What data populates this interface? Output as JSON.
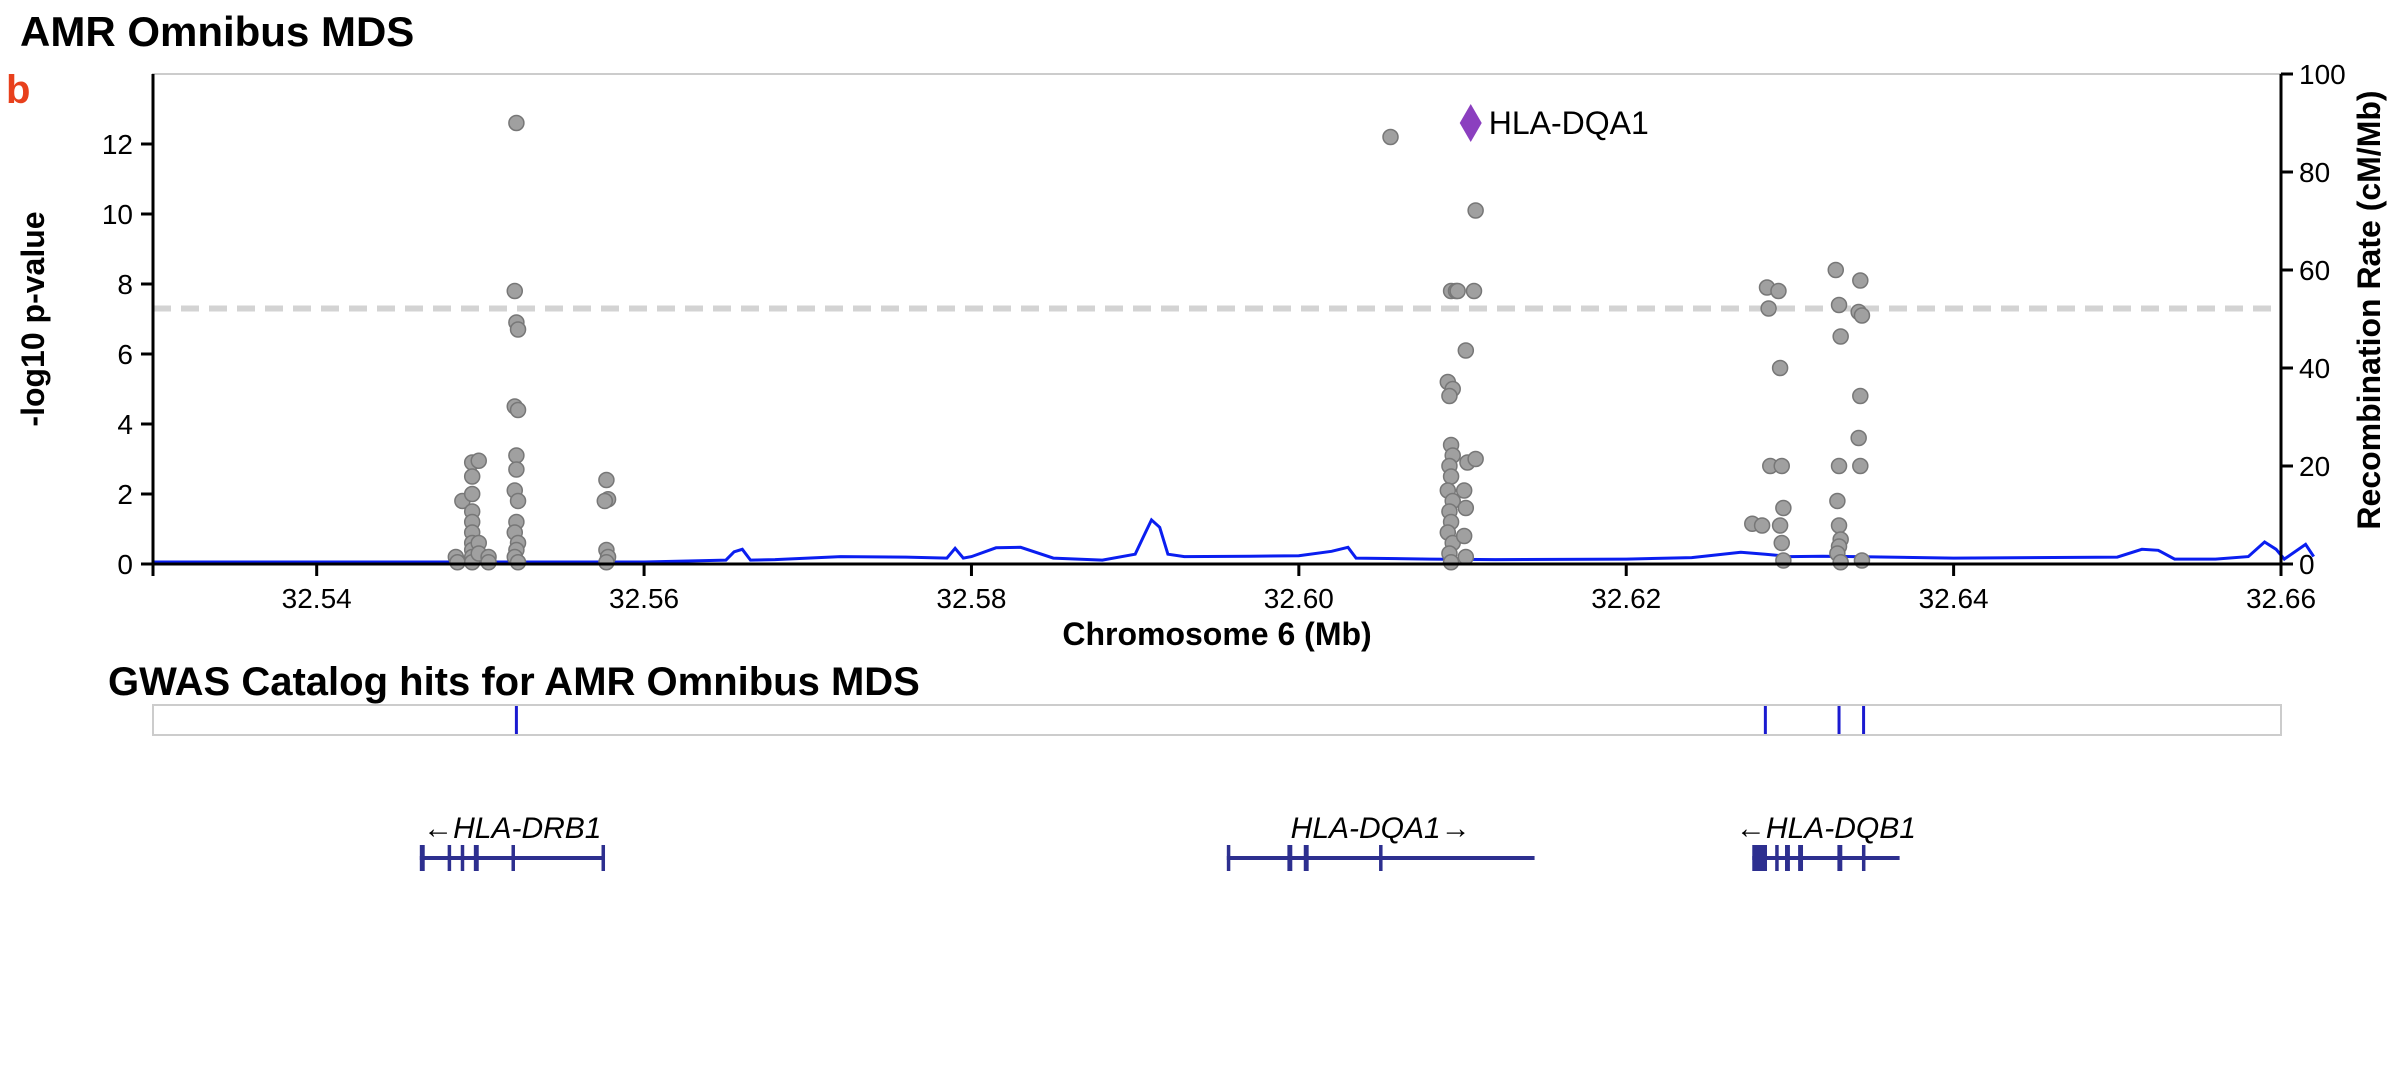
{
  "page": {
    "title": "AMR Omnibus MDS",
    "panel_letter": "b"
  },
  "chart_data": {
    "type": "scatter",
    "xlabel": "Chromosome 6 (Mb)",
    "ylabel": "-log10 p-value",
    "y2label": "Recombination Rate (cM/Mb)",
    "xlim": [
      32.53,
      32.66
    ],
    "ylim": [
      0,
      14
    ],
    "y2lim": [
      0,
      100
    ],
    "xticks": [
      32.54,
      32.56,
      32.58,
      32.6,
      32.62,
      32.64,
      32.66
    ],
    "xtick_labels": [
      "32.54",
      "32.56",
      "32.58",
      "32.60",
      "32.62",
      "32.64",
      "32.66"
    ],
    "yticks": [
      0,
      2,
      4,
      6,
      8,
      10,
      12
    ],
    "ytick_labels": [
      "0",
      "2",
      "4",
      "6",
      "8",
      "10",
      "12"
    ],
    "y2ticks": [
      0,
      20,
      40,
      60,
      80,
      100
    ],
    "y2tick_labels": [
      "0",
      "20",
      "40",
      "60",
      "80",
      "100"
    ],
    "significance_threshold": 7.3,
    "colors": {
      "points": "#a0a0a0",
      "point_stroke": "#777777",
      "lead": "#8b3fbf",
      "recomb": "#0a1ef0",
      "threshold": "#d3d3d3",
      "panel_letter": "#e8401c",
      "gene": "#2d2f8f",
      "gwas_hit": "#1a1ad0",
      "frame": "#cccccc"
    },
    "lead_variant": {
      "x": 32.6105,
      "y": 12.6,
      "label": "HLA-DQA1"
    },
    "points": [
      [
        32.5485,
        0.2
      ],
      [
        32.5486,
        0.05
      ],
      [
        32.5489,
        1.8
      ],
      [
        32.5495,
        2.9
      ],
      [
        32.5495,
        2.5
      ],
      [
        32.5495,
        2.0
      ],
      [
        32.5495,
        1.5
      ],
      [
        32.5495,
        1.2
      ],
      [
        32.5495,
        0.9
      ],
      [
        32.5495,
        0.6
      ],
      [
        32.5495,
        0.4
      ],
      [
        32.5495,
        0.2
      ],
      [
        32.5495,
        0.05
      ],
      [
        32.5499,
        2.95
      ],
      [
        32.5499,
        0.6
      ],
      [
        32.5499,
        0.3
      ],
      [
        32.5505,
        0.2
      ],
      [
        32.5505,
        0.05
      ],
      [
        32.5522,
        12.6
      ],
      [
        32.5521,
        7.8
      ],
      [
        32.5522,
        6.9
      ],
      [
        32.5523,
        6.7
      ],
      [
        32.5521,
        4.5
      ],
      [
        32.5523,
        4.4
      ],
      [
        32.5522,
        3.1
      ],
      [
        32.5522,
        2.7
      ],
      [
        32.5521,
        2.1
      ],
      [
        32.5523,
        1.8
      ],
      [
        32.5522,
        1.2
      ],
      [
        32.5521,
        0.9
      ],
      [
        32.5523,
        0.6
      ],
      [
        32.5522,
        0.4
      ],
      [
        32.5521,
        0.2
      ],
      [
        32.5523,
        0.05
      ],
      [
        32.5577,
        2.4
      ],
      [
        32.5578,
        1.85
      ],
      [
        32.5576,
        1.8
      ],
      [
        32.5577,
        0.4
      ],
      [
        32.5578,
        0.2
      ],
      [
        32.5577,
        0.05
      ],
      [
        32.6056,
        12.2
      ],
      [
        32.6093,
        7.8
      ],
      [
        32.6096,
        7.8
      ],
      [
        32.6097,
        7.8
      ],
      [
        32.6091,
        5.2
      ],
      [
        32.6094,
        5.0
      ],
      [
        32.6092,
        4.8
      ],
      [
        32.6093,
        3.4
      ],
      [
        32.6094,
        3.1
      ],
      [
        32.6092,
        2.8
      ],
      [
        32.6093,
        2.5
      ],
      [
        32.6091,
        2.1
      ],
      [
        32.6094,
        1.8
      ],
      [
        32.6092,
        1.5
      ],
      [
        32.6093,
        1.2
      ],
      [
        32.6091,
        0.9
      ],
      [
        32.6094,
        0.6
      ],
      [
        32.6092,
        0.3
      ],
      [
        32.6093,
        0.05
      ],
      [
        32.6102,
        6.1
      ],
      [
        32.6103,
        2.9
      ],
      [
        32.6101,
        2.1
      ],
      [
        32.6102,
        1.6
      ],
      [
        32.6101,
        0.8
      ],
      [
        32.6102,
        0.2
      ],
      [
        32.6108,
        10.1
      ],
      [
        32.6107,
        7.8
      ],
      [
        32.6108,
        3.0
      ],
      [
        32.6277,
        1.15
      ],
      [
        32.6283,
        1.1
      ],
      [
        32.6286,
        7.9
      ],
      [
        32.6287,
        7.3
      ],
      [
        32.6288,
        2.8
      ],
      [
        32.6293,
        7.8
      ],
      [
        32.6294,
        5.6
      ],
      [
        32.6295,
        2.8
      ],
      [
        32.6296,
        1.6
      ],
      [
        32.6294,
        1.1
      ],
      [
        32.6295,
        0.6
      ],
      [
        32.6296,
        0.1
      ],
      [
        32.6328,
        8.4
      ],
      [
        32.633,
        7.4
      ],
      [
        32.6331,
        6.5
      ],
      [
        32.633,
        2.8
      ],
      [
        32.6329,
        1.8
      ],
      [
        32.633,
        1.1
      ],
      [
        32.6331,
        0.7
      ],
      [
        32.633,
        0.5
      ],
      [
        32.6329,
        0.3
      ],
      [
        32.6331,
        0.05
      ],
      [
        32.6343,
        8.1
      ],
      [
        32.6342,
        7.2
      ],
      [
        32.6344,
        7.1
      ],
      [
        32.6343,
        4.8
      ],
      [
        32.6342,
        3.6
      ],
      [
        32.6343,
        2.8
      ],
      [
        32.6344,
        0.1
      ]
    ],
    "recombination": [
      [
        32.53,
        0.4
      ],
      [
        32.545,
        0.4
      ],
      [
        32.56,
        0.4
      ],
      [
        32.565,
        0.8
      ],
      [
        32.5655,
        2.5
      ],
      [
        32.566,
        3.0
      ],
      [
        32.5665,
        0.8
      ],
      [
        32.568,
        0.9
      ],
      [
        32.572,
        1.5
      ],
      [
        32.576,
        1.4
      ],
      [
        32.5785,
        1.2
      ],
      [
        32.579,
        3.2
      ],
      [
        32.5795,
        1.2
      ],
      [
        32.58,
        1.5
      ],
      [
        32.5815,
        3.3
      ],
      [
        32.583,
        3.4
      ],
      [
        32.585,
        1.2
      ],
      [
        32.588,
        0.8
      ],
      [
        32.59,
        2.0
      ],
      [
        32.5905,
        5.5
      ],
      [
        32.591,
        9.0
      ],
      [
        32.5915,
        7.5
      ],
      [
        32.592,
        2.0
      ],
      [
        32.593,
        1.5
      ],
      [
        32.597,
        1.6
      ],
      [
        32.6,
        1.7
      ],
      [
        32.602,
        2.6
      ],
      [
        32.603,
        3.4
      ],
      [
        32.6035,
        1.2
      ],
      [
        32.608,
        1.0
      ],
      [
        32.612,
        0.9
      ],
      [
        32.62,
        1.0
      ],
      [
        32.624,
        1.3
      ],
      [
        32.627,
        2.4
      ],
      [
        32.6285,
        2.0
      ],
      [
        32.63,
        1.5
      ],
      [
        32.632,
        1.6
      ],
      [
        32.634,
        1.5
      ],
      [
        32.64,
        1.2
      ],
      [
        32.65,
        1.4
      ],
      [
        32.6515,
        3.0
      ],
      [
        32.6525,
        2.8
      ],
      [
        32.6535,
        1.0
      ],
      [
        32.656,
        1.0
      ],
      [
        32.658,
        1.5
      ],
      [
        32.659,
        4.5
      ],
      [
        32.6597,
        3.0
      ],
      [
        32.6602,
        1.0
      ],
      [
        32.6615,
        4.0
      ],
      [
        32.662,
        1.5
      ]
    ],
    "gwas_title": "GWAS Catalog hits for AMR Omnibus MDS",
    "gwas_hits": [
      32.5522,
      32.6285,
      32.633,
      32.6345
    ],
    "genes": [
      {
        "name": "HLA-DRB1",
        "label": "←HLA-DRB1",
        "start": 32.5463,
        "end": 32.5576,
        "exons": [
          [
            32.5463,
            32.5466
          ],
          [
            32.548,
            32.5482
          ],
          [
            32.5488,
            32.549
          ],
          [
            32.5496,
            32.5499
          ],
          [
            32.5519,
            32.5521
          ],
          [
            32.5574,
            32.5576
          ]
        ]
      },
      {
        "name": "HLA-DQA1",
        "label": "HLA-DQA1→",
        "start": 32.5956,
        "end": 32.6144,
        "exons": [
          [
            32.5956,
            32.5958
          ],
          [
            32.5993,
            32.5996
          ],
          [
            32.6003,
            32.6006
          ],
          [
            32.6049,
            32.6051
          ]
        ]
      },
      {
        "name": "HLA-DQB1",
        "label": "←HLA-DQB1",
        "start": 32.6277,
        "end": 32.6367,
        "exons": [
          [
            32.6277,
            32.6286
          ],
          [
            32.6291,
            32.6293
          ],
          [
            32.6297,
            32.63
          ],
          [
            32.6305,
            32.6308
          ],
          [
            32.6329,
            32.6332
          ],
          [
            32.6344,
            32.6346
          ]
        ]
      }
    ]
  }
}
